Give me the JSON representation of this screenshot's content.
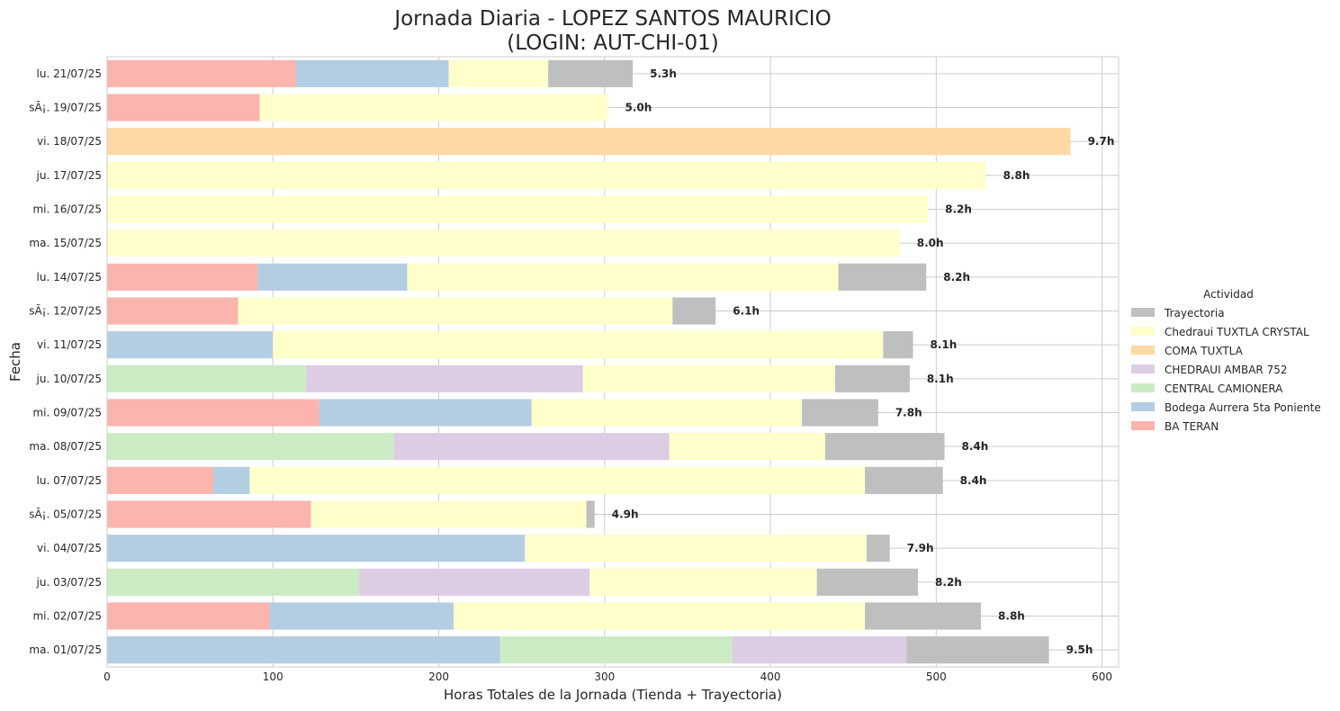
{
  "chart_data": {
    "type": "bar",
    "orientation": "horizontal",
    "stacked": true,
    "title": "Jornada Diaria - LOPEZ SANTOS MAURICIO",
    "subtitle": "(LOGIN: AUT-CHI-01)",
    "xlabel": "Horas Totales de la Jornada (Tienda + Trayectoria)",
    "ylabel": "Fecha",
    "xlim": [
      0,
      610
    ],
    "xticks": [
      0,
      100,
      200,
      300,
      400,
      500,
      600
    ],
    "grid": true,
    "legend_title": "Actividad",
    "legend_position": "right",
    "categories": [
      "ma. 01/07/25",
      "mi. 02/07/25",
      "ju. 03/07/25",
      "vi. 04/07/25",
      "sÃ¡. 05/07/25",
      "lu. 07/07/25",
      "ma. 08/07/25",
      "mi. 09/07/25",
      "ju. 10/07/25",
      "vi. 11/07/25",
      "sÃ¡. 12/07/25",
      "lu. 14/07/25",
      "ma. 15/07/25",
      "mi. 16/07/25",
      "ju. 17/07/25",
      "vi. 18/07/25",
      "sÃ¡. 19/07/25",
      "lu. 21/07/25"
    ],
    "series": [
      {
        "name": "BA TERAN",
        "color": "#fbb4ae",
        "values": [
          0,
          98,
          0,
          0,
          123,
          64,
          0,
          128,
          0,
          0,
          79,
          91,
          0,
          0,
          0,
          0,
          92,
          114
        ]
      },
      {
        "name": "Bodega Aurrera 5ta Poniente",
        "color": "#b3cde3",
        "values": [
          237,
          111,
          0,
          252,
          0,
          22,
          0,
          128,
          0,
          100,
          0,
          90,
          0,
          0,
          0,
          0,
          0,
          92
        ]
      },
      {
        "name": "CENTRAL CAMIONERA",
        "color": "#ccebc5",
        "values": [
          140,
          0,
          152,
          0,
          0,
          0,
          173,
          0,
          120,
          0,
          0,
          0,
          0,
          0,
          0,
          0,
          0,
          0
        ]
      },
      {
        "name": "CHEDRAUI AMBAR 752",
        "color": "#decbe4",
        "values": [
          105,
          0,
          139,
          0,
          0,
          0,
          166,
          0,
          167,
          0,
          0,
          0,
          0,
          0,
          0,
          0,
          0,
          0
        ]
      },
      {
        "name": "COMA TUXTLA",
        "color": "#fed9a6",
        "values": [
          0,
          0,
          0,
          0,
          0,
          0,
          0,
          0,
          0,
          0,
          0,
          0,
          0,
          0,
          0,
          581,
          0,
          0
        ]
      },
      {
        "name": "Chedraui TUXTLA CRYSTAL",
        "color": "#ffffcc",
        "values": [
          0,
          248,
          137,
          206,
          166,
          371,
          94,
          163,
          152,
          368,
          262,
          260,
          478,
          495,
          530,
          0,
          210,
          60
        ]
      },
      {
        "name": "Trayectoria",
        "color": "#bfbfbf",
        "values": [
          86,
          70,
          61,
          14,
          5,
          47,
          72,
          46,
          45,
          18,
          26,
          53,
          0,
          0,
          0,
          0,
          0,
          51
        ]
      }
    ],
    "totals_labels": [
      "9.5h",
      "8.8h",
      "8.2h",
      "7.9h",
      "4.9h",
      "8.4h",
      "8.4h",
      "7.8h",
      "8.1h",
      "8.1h",
      "6.1h",
      "8.2h",
      "8.0h",
      "8.2h",
      "8.8h",
      "9.7h",
      "5.0h",
      "5.3h"
    ],
    "legend_order": [
      "Trayectoria",
      "Chedraui TUXTLA CRYSTAL",
      "COMA TUXTLA",
      "CHEDRAUI AMBAR 752",
      "CENTRAL CAMIONERA",
      "Bodega Aurrera 5ta Poniente",
      "BA TERAN"
    ]
  }
}
